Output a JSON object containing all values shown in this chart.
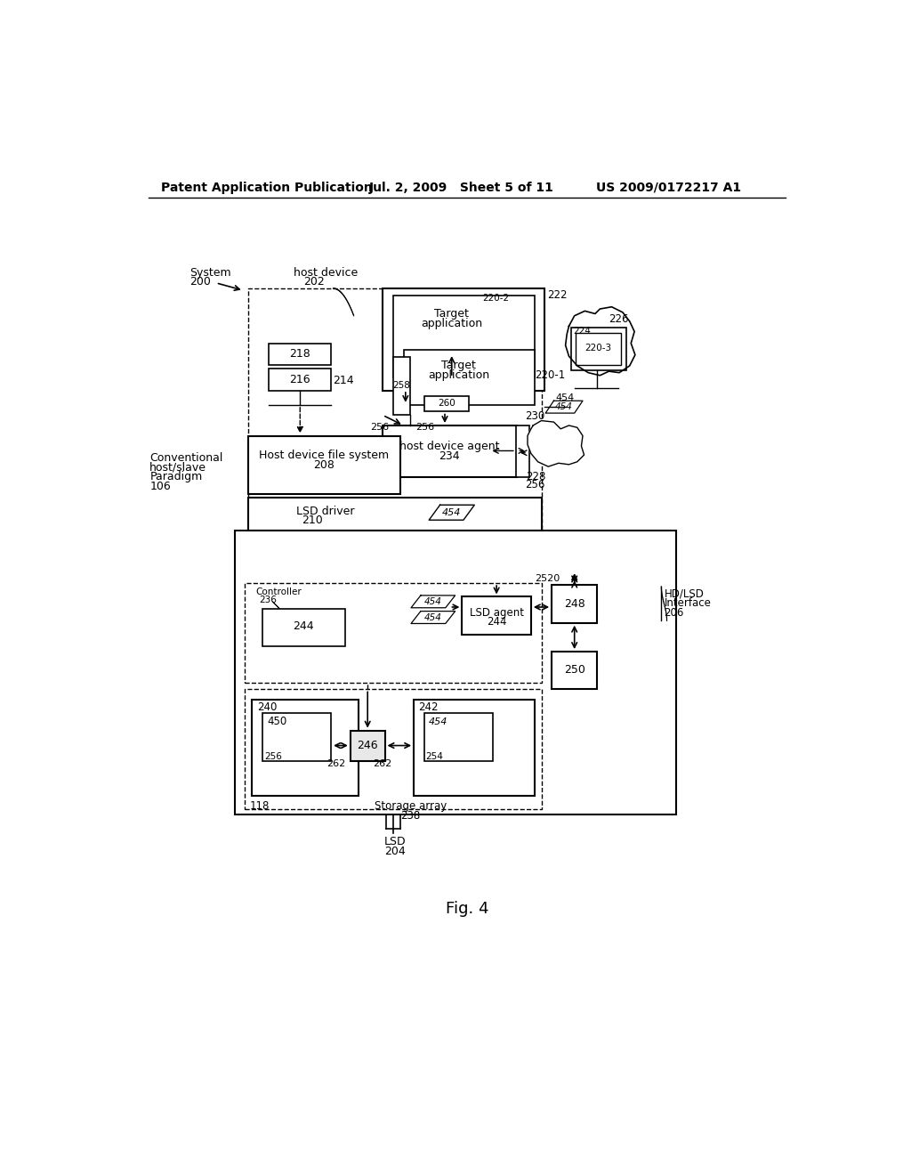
{
  "title_left": "Patent Application Publication",
  "title_mid": "Jul. 2, 2009   Sheet 5 of 11",
  "title_right": "US 2009/0172217 A1",
  "fig_label": "Fig. 4",
  "bg_color": "#ffffff"
}
